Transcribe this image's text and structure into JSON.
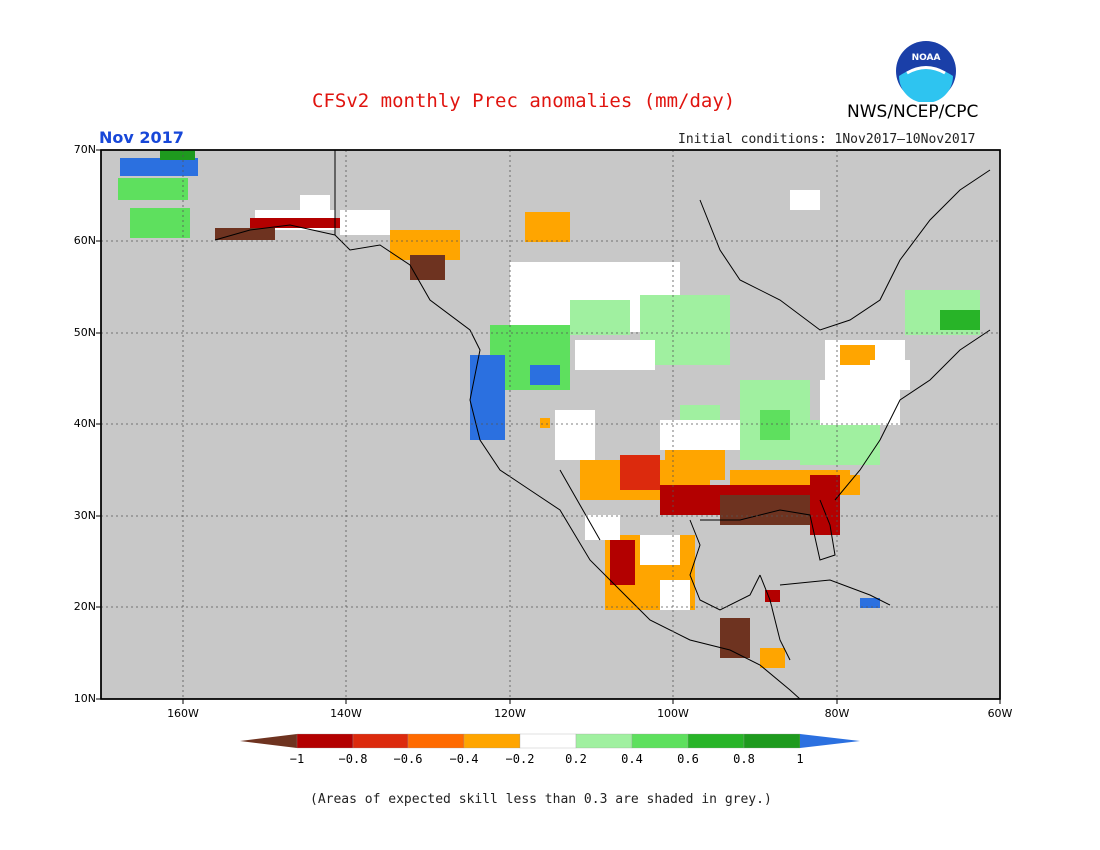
{
  "header": {
    "title": "CFSv2 monthly Prec anomalies (mm/day)",
    "org": "NWS/NCEP/CPC",
    "month": "Nov 2017",
    "initial_conditions": "Initial conditions: 1Nov2017–10Nov2017",
    "logo_text": "NOAA"
  },
  "map": {
    "lat_labels": [
      "70N",
      "60N",
      "50N",
      "40N",
      "30N",
      "20N",
      "10N"
    ],
    "lon_labels": [
      "160W",
      "140W",
      "120W",
      "100W",
      "80W",
      "60W"
    ],
    "background": "#c8c8c8",
    "grid": true
  },
  "colorbar": {
    "labels": [
      "−1",
      "−0.8",
      "−0.6",
      "−0.4",
      "−0.2",
      "0.2",
      "0.4",
      "0.6",
      "0.8",
      "1"
    ],
    "colors": [
      "#6e3320",
      "#b30000",
      "#dc2a0d",
      "#ff6a00",
      "#ffa500",
      "#ffffff",
      "#a0f0a0",
      "#5ee05e",
      "#28b428",
      "#1e9a1e",
      "#2b70e0"
    ]
  },
  "footnote": "(Areas of expected skill less than 0.3 are shaded in grey.)"
}
